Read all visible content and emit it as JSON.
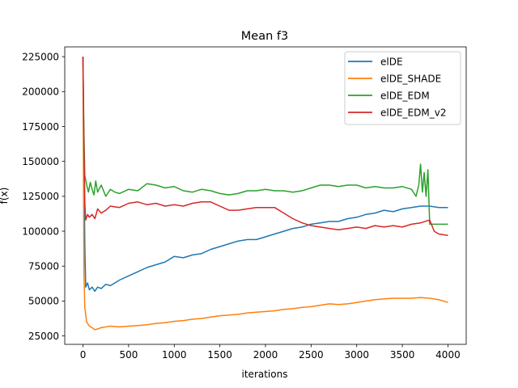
{
  "chart_data": {
    "type": "line",
    "title": "Mean f3",
    "xlabel": "iterations",
    "ylabel": "f(x)",
    "xlim": [
      -200,
      4200
    ],
    "ylim": [
      19000,
      232000
    ],
    "x_ticks": [
      0,
      500,
      1000,
      1500,
      2000,
      2500,
      3000,
      3500,
      4000
    ],
    "y_ticks": [
      25000,
      50000,
      75000,
      100000,
      125000,
      150000,
      175000,
      200000,
      225000
    ],
    "y_tick_labels": [
      "25000",
      "50000",
      "75000",
      "100000",
      "125000",
      "150000",
      "175000",
      "200000",
      "225000"
    ],
    "grid": false,
    "legend_position": "top-right",
    "series": [
      {
        "name": "elDE",
        "color": "#1f77b4",
        "points": [
          [
            0,
            225000
          ],
          [
            10,
            150000
          ],
          [
            20,
            90000
          ],
          [
            30,
            60000
          ],
          [
            50,
            63000
          ],
          [
            70,
            58000
          ],
          [
            100,
            60000
          ],
          [
            130,
            57000
          ],
          [
            160,
            60000
          ],
          [
            200,
            59000
          ],
          [
            250,
            62000
          ],
          [
            300,
            61000
          ],
          [
            350,
            63000
          ],
          [
            400,
            65000
          ],
          [
            500,
            68000
          ],
          [
            600,
            71000
          ],
          [
            700,
            74000
          ],
          [
            800,
            76000
          ],
          [
            900,
            78000
          ],
          [
            1000,
            82000
          ],
          [
            1100,
            81000
          ],
          [
            1200,
            83000
          ],
          [
            1300,
            84000
          ],
          [
            1400,
            87000
          ],
          [
            1500,
            89000
          ],
          [
            1600,
            91000
          ],
          [
            1700,
            93000
          ],
          [
            1800,
            94000
          ],
          [
            1900,
            94000
          ],
          [
            2000,
            96000
          ],
          [
            2100,
            98000
          ],
          [
            2200,
            100000
          ],
          [
            2300,
            102000
          ],
          [
            2400,
            103000
          ],
          [
            2500,
            105000
          ],
          [
            2600,
            106000
          ],
          [
            2700,
            107000
          ],
          [
            2800,
            107000
          ],
          [
            2900,
            109000
          ],
          [
            3000,
            110000
          ],
          [
            3100,
            112000
          ],
          [
            3200,
            113000
          ],
          [
            3300,
            115000
          ],
          [
            3400,
            114000
          ],
          [
            3500,
            116000
          ],
          [
            3600,
            117000
          ],
          [
            3700,
            118000
          ],
          [
            3800,
            118000
          ],
          [
            3900,
            117000
          ],
          [
            4000,
            117000
          ]
        ]
      },
      {
        "name": "elDE_SHADE",
        "color": "#ff7f0e",
        "points": [
          [
            0,
            225000
          ],
          [
            10,
            70000
          ],
          [
            20,
            45000
          ],
          [
            40,
            35000
          ],
          [
            70,
            32000
          ],
          [
            100,
            31000
          ],
          [
            130,
            29500
          ],
          [
            160,
            30000
          ],
          [
            200,
            31000
          ],
          [
            300,
            32000
          ],
          [
            400,
            31500
          ],
          [
            500,
            32000
          ],
          [
            600,
            32500
          ],
          [
            700,
            33000
          ],
          [
            800,
            34000
          ],
          [
            900,
            34500
          ],
          [
            1000,
            35500
          ],
          [
            1100,
            36000
          ],
          [
            1200,
            37000
          ],
          [
            1300,
            37500
          ],
          [
            1400,
            38500
          ],
          [
            1500,
            39500
          ],
          [
            1600,
            40000
          ],
          [
            1700,
            40500
          ],
          [
            1800,
            41500
          ],
          [
            1900,
            42000
          ],
          [
            2000,
            42500
          ],
          [
            2100,
            43000
          ],
          [
            2200,
            44000
          ],
          [
            2300,
            44500
          ],
          [
            2400,
            45500
          ],
          [
            2500,
            46000
          ],
          [
            2600,
            47000
          ],
          [
            2700,
            48000
          ],
          [
            2800,
            47500
          ],
          [
            2900,
            48000
          ],
          [
            3000,
            49000
          ],
          [
            3100,
            50000
          ],
          [
            3200,
            51000
          ],
          [
            3300,
            51500
          ],
          [
            3400,
            52000
          ],
          [
            3500,
            52000
          ],
          [
            3600,
            52000
          ],
          [
            3700,
            52500
          ],
          [
            3800,
            52000
          ],
          [
            3900,
            51000
          ],
          [
            4000,
            49000
          ]
        ]
      },
      {
        "name": "elDE_EDM",
        "color": "#2ca02c",
        "points": [
          [
            0,
            225000
          ],
          [
            10,
            170000
          ],
          [
            20,
            140000
          ],
          [
            40,
            133000
          ],
          [
            60,
            128000
          ],
          [
            80,
            135000
          ],
          [
            100,
            130000
          ],
          [
            120,
            126000
          ],
          [
            140,
            136000
          ],
          [
            160,
            128000
          ],
          [
            200,
            133000
          ],
          [
            250,
            125000
          ],
          [
            300,
            130000
          ],
          [
            350,
            128000
          ],
          [
            400,
            127000
          ],
          [
            500,
            130000
          ],
          [
            600,
            129000
          ],
          [
            700,
            134000
          ],
          [
            800,
            133000
          ],
          [
            900,
            131000
          ],
          [
            1000,
            132000
          ],
          [
            1100,
            129000
          ],
          [
            1200,
            128000
          ],
          [
            1300,
            130000
          ],
          [
            1400,
            129000
          ],
          [
            1500,
            127000
          ],
          [
            1600,
            126000
          ],
          [
            1700,
            127000
          ],
          [
            1800,
            129000
          ],
          [
            1900,
            129000
          ],
          [
            2000,
            130000
          ],
          [
            2100,
            129000
          ],
          [
            2200,
            129000
          ],
          [
            2300,
            128000
          ],
          [
            2400,
            129000
          ],
          [
            2500,
            131000
          ],
          [
            2600,
            133000
          ],
          [
            2700,
            133000
          ],
          [
            2800,
            132000
          ],
          [
            2900,
            133000
          ],
          [
            3000,
            133000
          ],
          [
            3100,
            131000
          ],
          [
            3200,
            132000
          ],
          [
            3300,
            131000
          ],
          [
            3400,
            131000
          ],
          [
            3500,
            132000
          ],
          [
            3600,
            130000
          ],
          [
            3650,
            125000
          ],
          [
            3680,
            133000
          ],
          [
            3700,
            148000
          ],
          [
            3720,
            128000
          ],
          [
            3740,
            142000
          ],
          [
            3760,
            125000
          ],
          [
            3780,
            144000
          ],
          [
            3800,
            105000
          ],
          [
            3900,
            105000
          ],
          [
            4000,
            105000
          ]
        ]
      },
      {
        "name": "elDE_EDM_v2",
        "color": "#d62728",
        "points": [
          [
            0,
            225000
          ],
          [
            10,
            160000
          ],
          [
            20,
            120000
          ],
          [
            30,
            108000
          ],
          [
            50,
            112000
          ],
          [
            70,
            110000
          ],
          [
            100,
            112000
          ],
          [
            130,
            109000
          ],
          [
            160,
            116000
          ],
          [
            200,
            113000
          ],
          [
            250,
            115000
          ],
          [
            300,
            118000
          ],
          [
            400,
            117000
          ],
          [
            500,
            120000
          ],
          [
            600,
            121000
          ],
          [
            700,
            119000
          ],
          [
            800,
            120000
          ],
          [
            900,
            118000
          ],
          [
            1000,
            119000
          ],
          [
            1100,
            118000
          ],
          [
            1200,
            120000
          ],
          [
            1300,
            121000
          ],
          [
            1400,
            121000
          ],
          [
            1500,
            118000
          ],
          [
            1600,
            115000
          ],
          [
            1700,
            115000
          ],
          [
            1800,
            116000
          ],
          [
            1900,
            117000
          ],
          [
            2000,
            117000
          ],
          [
            2100,
            117000
          ],
          [
            2200,
            113000
          ],
          [
            2300,
            109000
          ],
          [
            2400,
            106000
          ],
          [
            2500,
            104000
          ],
          [
            2600,
            103000
          ],
          [
            2700,
            102000
          ],
          [
            2800,
            101000
          ],
          [
            2900,
            102000
          ],
          [
            3000,
            103000
          ],
          [
            3100,
            102000
          ],
          [
            3200,
            104000
          ],
          [
            3300,
            103000
          ],
          [
            3400,
            104000
          ],
          [
            3500,
            103000
          ],
          [
            3600,
            105000
          ],
          [
            3700,
            106000
          ],
          [
            3800,
            108000
          ],
          [
            3850,
            100000
          ],
          [
            3900,
            98000
          ],
          [
            4000,
            97000
          ]
        ]
      }
    ]
  }
}
